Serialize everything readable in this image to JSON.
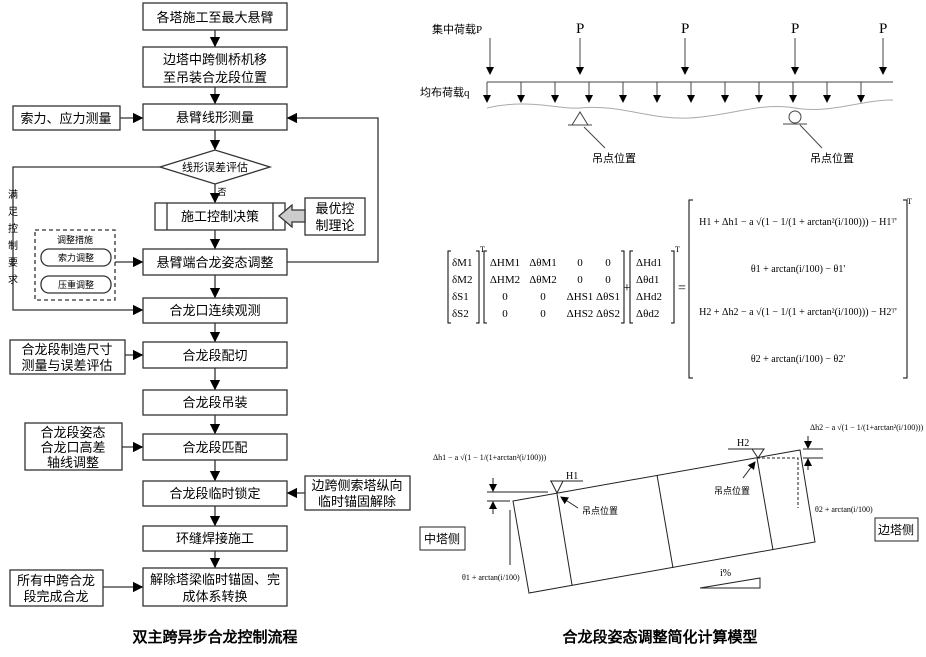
{
  "flow": {
    "caption": "双主跨异步合龙控制流程",
    "steps": [
      "各塔施工至最大悬臂",
      "边塔中跨侧桥机移",
      "至吊装合龙段位置",
      "悬臂线形测量",
      "施工控制决策",
      "悬臂端合龙姿态调整",
      "合龙口连续观测",
      "合龙段配切",
      "合龙段吊装",
      "合龙段匹配",
      "合龙段临时锁定",
      "环缝焊接施工",
      "解除塔梁临时锚固、完",
      "成体系转换"
    ],
    "decision": "线形误差评估",
    "no_label": "否",
    "yes_label": [
      "满",
      "足",
      "控",
      "制",
      "要",
      "求"
    ],
    "side": {
      "stress": "索力、应力测量",
      "optimal": [
        "最优控",
        "制理论"
      ],
      "measures_title": "调整措施",
      "measure1": "索力调整",
      "measure2": "压重调整",
      "manufacture": [
        "合龙段制造尺寸",
        "测量与误差评估"
      ],
      "posture": [
        "合龙段姿态",
        "合龙口高差",
        "轴线调整"
      ],
      "release": [
        "边跨侧索塔纵向",
        "临时锚固解除"
      ],
      "all_closed": [
        "所有中跨合龙",
        "段完成合龙"
      ]
    }
  },
  "load": {
    "point_label": "集中荷载P",
    "p": "P",
    "dist_label": "均布荷载q",
    "lift": "吊点位置"
  },
  "matrix": {
    "delta": [
      "δM1",
      "δM2",
      "δS1",
      "δS2"
    ],
    "rows": [
      [
        "ΔHM1",
        "ΔθM1",
        "0",
        "0"
      ],
      [
        "ΔHM2",
        "ΔθM2",
        "0",
        "0"
      ],
      [
        "0",
        "0",
        "ΔHS1",
        "ΔθS1"
      ],
      [
        "0",
        "0",
        "ΔHS2",
        "ΔθS2"
      ]
    ],
    "vec": [
      "ΔHd1",
      "Δθd1",
      "ΔHd2",
      "Δθd2"
    ],
    "rhs": [
      "H1 + Δh1 − a √(1 − 1/(1 + arctan²(i/100))) − H1ᵀ'",
      "θ1 + arctan(i/100) − θ1'",
      "H2 + Δh2 − a √(1 − 1/(1 + arctan²(i/100))) − H2ᵀ'",
      "θ2 + arctan(i/100) − θ2'"
    ],
    "T": "T",
    "plus": "+",
    "eq": "="
  },
  "model": {
    "caption": "合龙段姿态调整简化计算模型",
    "f1": "Δh1 − a √(1 − 1/(1+arctan²(i/100)))",
    "f2": "Δh2 − a √(1 − 1/(1+arctan²(i/100)))",
    "a1": "θ1 + arctan(i/100)",
    "a2": "θ2 + arctan(i/100)",
    "h1": "H1",
    "h2": "H2",
    "lift": "吊点位置",
    "mid": "中塔侧",
    "side": "边塔侧",
    "slope": "i%"
  }
}
